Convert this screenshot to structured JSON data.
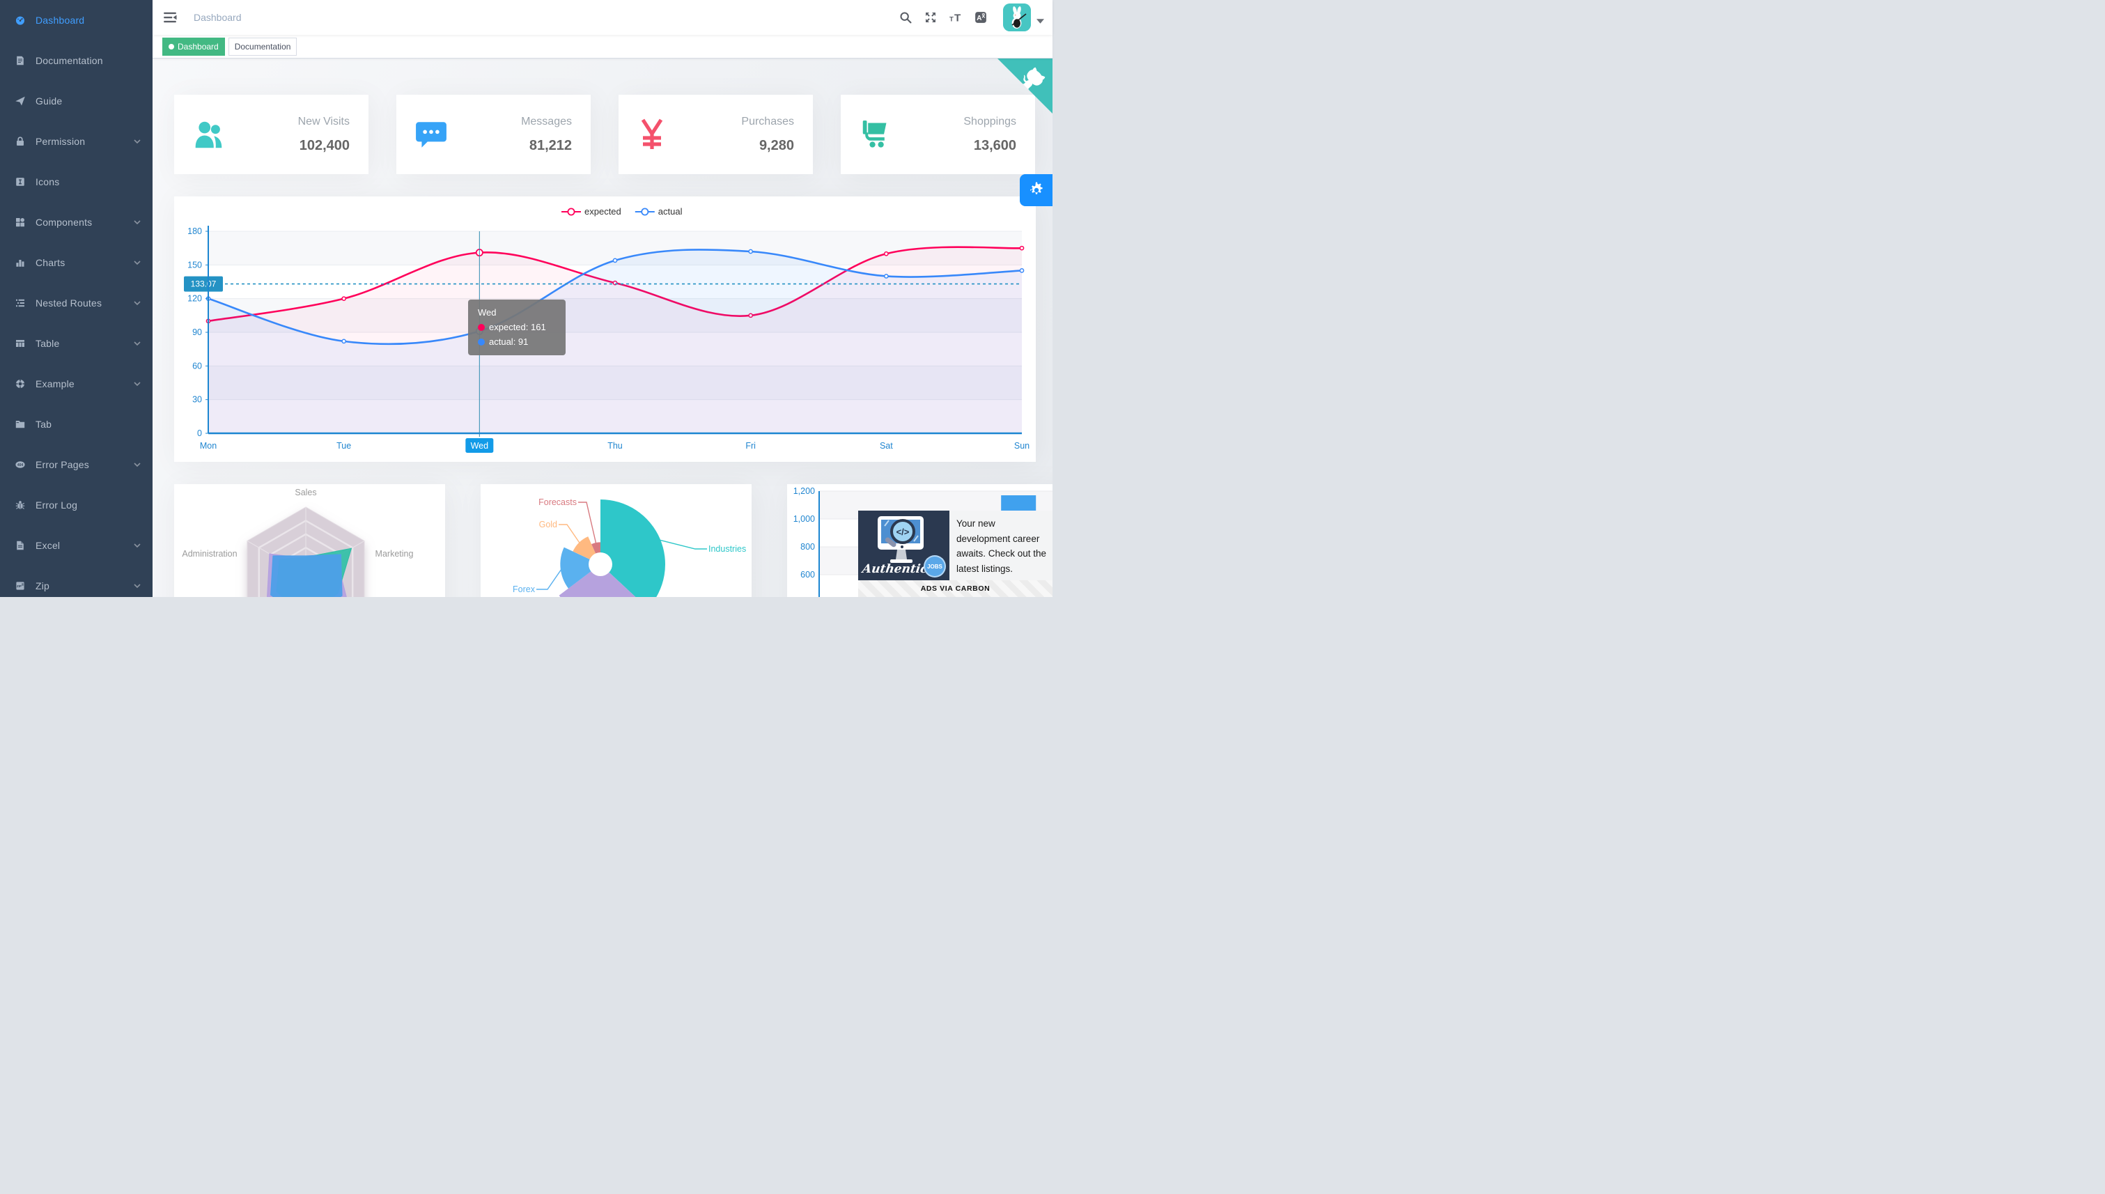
{
  "app": {
    "breadcrumb": "Dashboard"
  },
  "sidebar": {
    "bg_color": "#304156",
    "active_color": "#409eff",
    "items": [
      {
        "label": "Dashboard",
        "icon": "dashboard-icon",
        "active": true,
        "has_arrow": false
      },
      {
        "label": "Documentation",
        "icon": "documentation-icon",
        "active": false,
        "has_arrow": false
      },
      {
        "label": "Guide",
        "icon": "guide-icon",
        "active": false,
        "has_arrow": false
      },
      {
        "label": "Permission",
        "icon": "lock-icon",
        "active": false,
        "has_arrow": true
      },
      {
        "label": "Icons",
        "icon": "icons-icon",
        "active": false,
        "has_arrow": false
      },
      {
        "label": "Components",
        "icon": "components-icon",
        "active": false,
        "has_arrow": true
      },
      {
        "label": "Charts",
        "icon": "charts-icon",
        "active": false,
        "has_arrow": true
      },
      {
        "label": "Nested Routes",
        "icon": "nested-routes-icon",
        "active": false,
        "has_arrow": true
      },
      {
        "label": "Table",
        "icon": "table-icon",
        "active": false,
        "has_arrow": true
      },
      {
        "label": "Example",
        "icon": "example-icon",
        "active": false,
        "has_arrow": true
      },
      {
        "label": "Tab",
        "icon": "tab-icon",
        "active": false,
        "has_arrow": false
      },
      {
        "label": "Error Pages",
        "icon": "error-pages-icon",
        "active": false,
        "has_arrow": true
      },
      {
        "label": "Error Log",
        "icon": "bug-icon",
        "active": false,
        "has_arrow": false
      },
      {
        "label": "Excel",
        "icon": "excel-icon",
        "active": false,
        "has_arrow": true
      },
      {
        "label": "Zip",
        "icon": "zip-icon",
        "active": false,
        "has_arrow": true
      }
    ]
  },
  "navbar_icon_names": [
    "search-icon",
    "fullscreen-icon",
    "text-size-icon",
    "language-icon",
    "user-avatar",
    "caret-down-icon"
  ],
  "tags": [
    {
      "label": "Dashboard",
      "active": true,
      "color": "#42b983"
    },
    {
      "label": "Documentation",
      "active": false
    }
  ],
  "stat_cards": [
    {
      "title": "New Visits",
      "value": "102,400",
      "icon": "people-icon",
      "color": "#40c9c6"
    },
    {
      "title": "Messages",
      "value": "81,212",
      "icon": "message-icon",
      "color": "#36a3f7"
    },
    {
      "title": "Purchases",
      "value": "9,280",
      "icon": "money-icon",
      "color": "#f4516c"
    },
    {
      "title": "Shoppings",
      "value": "13,600",
      "icon": "shopping-icon",
      "color": "#34bfa3"
    }
  ],
  "chart_data": [
    {
      "type": "line",
      "categories": [
        "Mon",
        "Tue",
        "Wed",
        "Thu",
        "Fri",
        "Sat",
        "Sun"
      ],
      "series": [
        {
          "name": "expected",
          "color": "#FF005A",
          "values": [
            100,
            120,
            161,
            134,
            105,
            160,
            165
          ]
        },
        {
          "name": "actual",
          "color": "#3888fa",
          "values": [
            120,
            82,
            91,
            154,
            162,
            140,
            145
          ]
        }
      ],
      "ylim": [
        0,
        180
      ],
      "yticks": [
        0,
        30,
        60,
        90,
        120,
        150,
        180
      ],
      "grid": true,
      "legend_position": "top",
      "highlighted_category": "Wed",
      "crosshair_value_label": "133.07",
      "crosshair_value": 133.07,
      "tooltip": {
        "title": "Wed",
        "rows": [
          {
            "name": "expected",
            "value": "expected: 161",
            "color": "#FF005A"
          },
          {
            "name": "actual",
            "value": "actual: 91",
            "color": "#3888fa"
          }
        ]
      }
    },
    {
      "type": "radar",
      "indicators_visible": [
        "Sales",
        "Administration",
        "Marketing"
      ],
      "axes_count": 6,
      "grid_color": "#d8cfd8",
      "series": [
        {
          "color": "#b49fe0",
          "opacity": 0.9,
          "r_fracs": [
            0.24,
            0.62,
            0.66,
            0.74,
            0.7,
            0.52
          ]
        },
        {
          "color": "#2dbfa5",
          "opacity": 0.9,
          "r_fracs": [
            0.26,
            0.45,
            0.5,
            0.6,
            0.55,
            0.78
          ]
        },
        {
          "color": "#4d9fe8",
          "opacity": 0.95,
          "r_fracs": [
            0.28,
            0.56,
            0.6,
            0.66,
            0.62,
            0.6
          ]
        }
      ]
    },
    {
      "type": "pie",
      "style": "rose",
      "slices": [
        {
          "label": "Industries",
          "color": "#2ec7c9",
          "angle_deg": 133,
          "radius_frac": 1.0,
          "label_visible": true
        },
        {
          "label": "",
          "color": "#b6a2de",
          "angle_deg": 100,
          "radius_frac": 0.8,
          "label_visible": false
        },
        {
          "label": "Forex",
          "color": "#5ab1ef",
          "angle_deg": 62,
          "radius_frac": 0.62,
          "label_visible": true
        },
        {
          "label": "Gold",
          "color": "#ffb980",
          "angle_deg": 41,
          "radius_frac": 0.47,
          "label_visible": true
        },
        {
          "label": "Forecasts",
          "color": "#d87a80",
          "angle_deg": 24,
          "radius_frac": 0.34,
          "label_visible": true
        }
      ]
    },
    {
      "type": "bar",
      "yticks": [
        600,
        800,
        1000,
        1200
      ],
      "slots": 7,
      "visible_bar": {
        "slot": 4,
        "value": 1170
      },
      "bar_color": "#40a1ee"
    }
  ],
  "ad": {
    "headline": "Your new development career awaits. Check out the latest listings.",
    "brand": "Authentic",
    "badge": "JOBS",
    "attribution": "ADS VIA CARBON"
  }
}
